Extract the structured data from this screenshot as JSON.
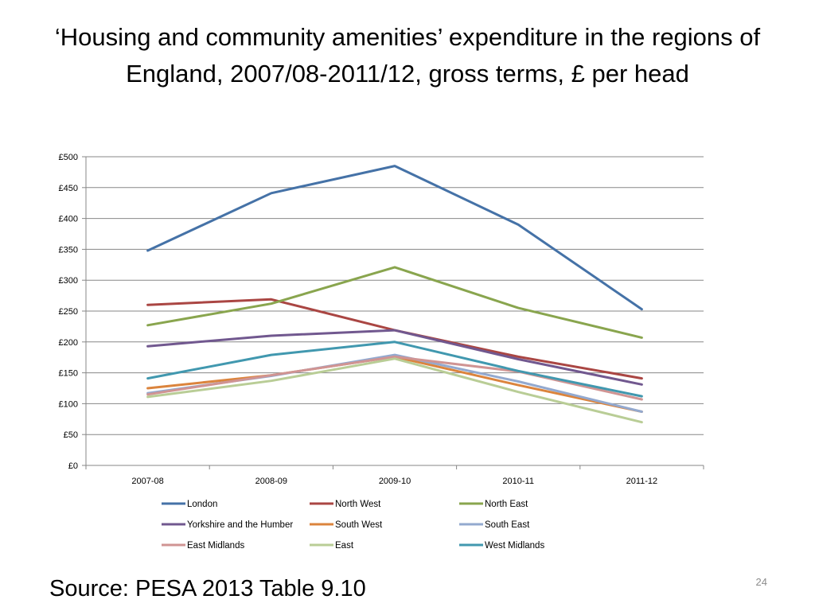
{
  "slide": {
    "title": "‘Housing and community amenities’ expenditure in the regions of England, 2007/08-2011/12, gross terms, £ per head",
    "source": "Source: PESA 2013 Table 9.10",
    "page_number": "24"
  },
  "chart_data": {
    "type": "line",
    "title": "",
    "xlabel": "",
    "ylabel": "",
    "categories": [
      "2007-08",
      "2008-09",
      "2009-10",
      "2010-11",
      "2011-12"
    ],
    "y_ticks": [
      "£0",
      "£50",
      "£100",
      "£150",
      "£200",
      "£250",
      "£300",
      "£350",
      "£400",
      "£450",
      "£500"
    ],
    "ylim": [
      0,
      500
    ],
    "grid": true,
    "legend_position": "bottom",
    "series": [
      {
        "name": "London",
        "color": "#4572A7",
        "values": [
          348,
          441,
          485,
          390,
          253
        ]
      },
      {
        "name": "North West",
        "color": "#AA4643",
        "values": [
          260,
          269,
          219,
          176,
          141
        ]
      },
      {
        "name": "North East",
        "color": "#89A54E",
        "values": [
          227,
          262,
          321,
          255,
          207
        ]
      },
      {
        "name": "Yorkshire and the Humber",
        "color": "#71588F",
        "values": [
          193,
          210,
          219,
          172,
          131
        ]
      },
      {
        "name": "South West",
        "color": "#DB843D",
        "values": [
          125,
          146,
          176,
          130,
          87
        ]
      },
      {
        "name": "South East",
        "color": "#93A9CF",
        "values": [
          117,
          145,
          179,
          136,
          87
        ]
      },
      {
        "name": "East Midlands",
        "color": "#D09493",
        "values": [
          115,
          146,
          176,
          152,
          107
        ]
      },
      {
        "name": "East",
        "color": "#B9CD96",
        "values": [
          111,
          137,
          173,
          119,
          70
        ]
      },
      {
        "name": "West Midlands",
        "color": "#4198AF",
        "values": [
          141,
          179,
          200,
          153,
          112
        ]
      }
    ]
  }
}
